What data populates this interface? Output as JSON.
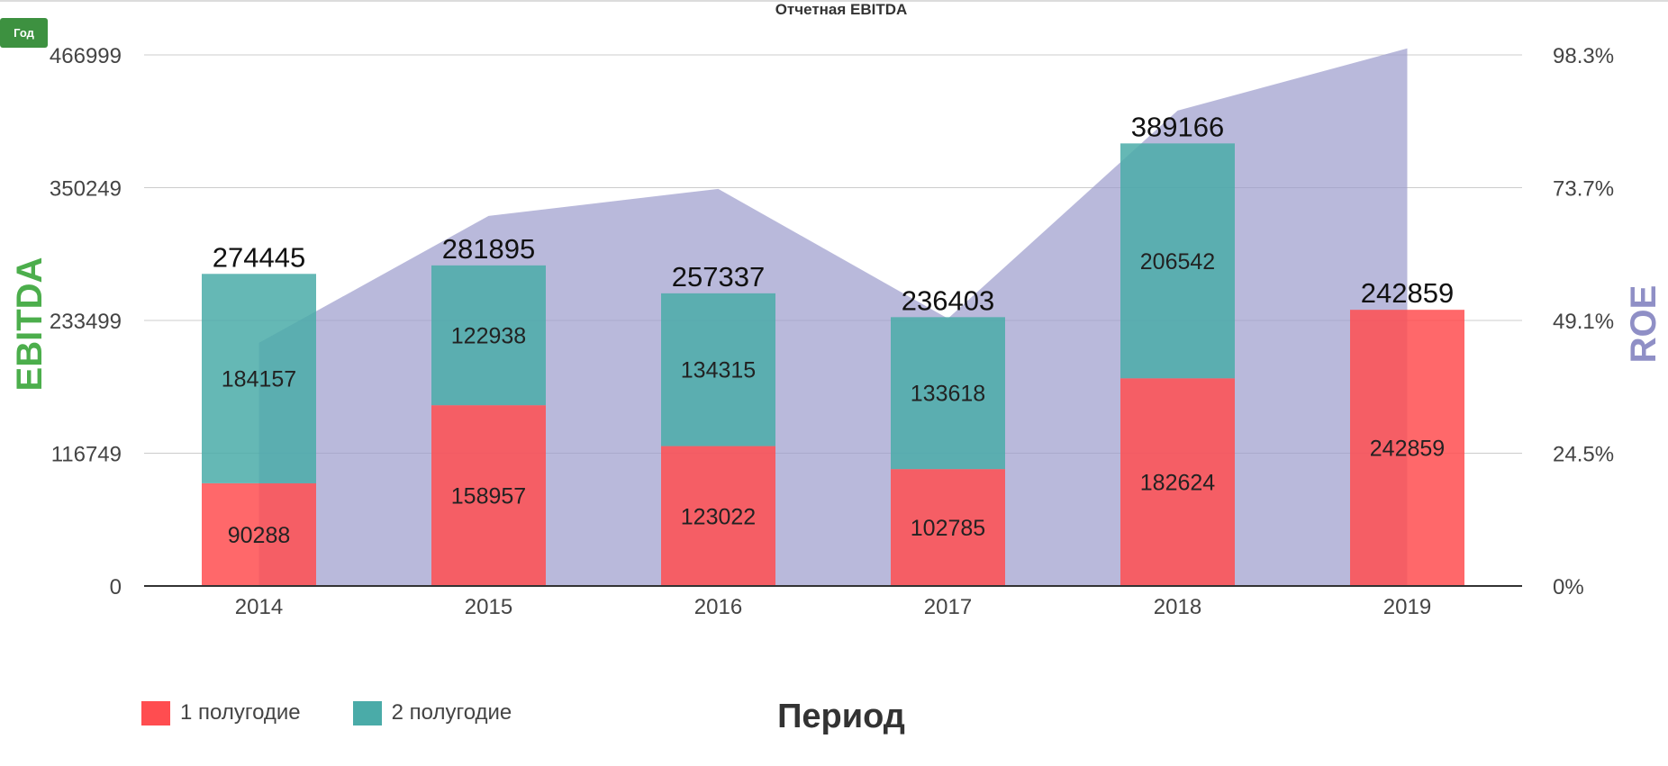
{
  "title": "Отчетная EBITDA",
  "period_button": "Год",
  "colors": {
    "half1": "#ff4d50",
    "half2": "#4aaba8",
    "roe": "#9b9bcc",
    "ebitda_axis": "#4cae4c",
    "roe_axis": "#8f8fc6",
    "button": "#3d9140"
  },
  "chart_data": {
    "type": "bar",
    "stacked": true,
    "title": "Отчетная EBITDA",
    "xlabel": "Период",
    "ylabel": "EBITDA",
    "y2label": "ROE",
    "categories": [
      "2014",
      "2015",
      "2016",
      "2017",
      "2018",
      "2019"
    ],
    "ylim": [
      0,
      466999
    ],
    "y_ticks": [
      "0",
      "116749",
      "233499",
      "350249",
      "466999"
    ],
    "y2lim": [
      0,
      98.3
    ],
    "y2_ticks": [
      "0%",
      "24.5%",
      "49.1%",
      "73.7%",
      "98.3%"
    ],
    "series": [
      {
        "name": "1 полугодие",
        "values": [
          90288,
          158957,
          123022,
          102785,
          182624,
          242859
        ]
      },
      {
        "name": "2 полугодие",
        "values": [
          184157,
          122938,
          134315,
          133618,
          206542,
          0
        ]
      }
    ],
    "totals": [
      "274445",
      "281895",
      "257337",
      "236403",
      "389166",
      "242859"
    ],
    "roe_series": {
      "type": "area",
      "values": [
        45.0,
        68.5,
        73.5,
        49.5,
        88.0,
        99.5
      ]
    },
    "legend": "bottom-left",
    "grid": true
  }
}
